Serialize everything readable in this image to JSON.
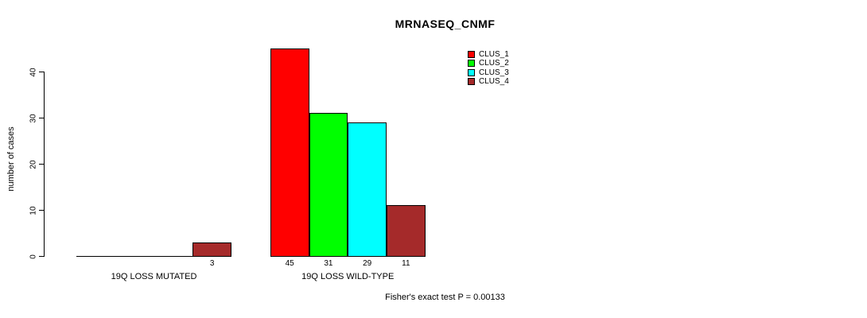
{
  "title": "MRNASEQ_CNMF",
  "ylabel": "number of cases",
  "footer": "Fisher's exact test P = 0.00133",
  "chart_data": {
    "type": "bar",
    "title": "MRNASEQ_CNMF",
    "ylabel": "number of cases",
    "xlabel": "",
    "annotation": "Fisher's exact test P = 0.00133",
    "groups": [
      {
        "label": "19Q LOSS MUTATED",
        "values": [
          0,
          0,
          0,
          3
        ]
      },
      {
        "label": "19Q LOSS WILD-TYPE",
        "values": [
          45,
          31,
          29,
          11
        ]
      }
    ],
    "series": [
      {
        "name": "CLUS_1",
        "color": "#FF0000",
        "values": [
          0,
          45
        ]
      },
      {
        "name": "CLUS_2",
        "color": "#00FF00",
        "values": [
          0,
          31
        ]
      },
      {
        "name": "CLUS_3",
        "color": "#00FFFF",
        "values": [
          0,
          29
        ]
      },
      {
        "name": "CLUS_4",
        "color": "#A52A2A",
        "values": [
          3,
          11
        ]
      }
    ],
    "yticks": [
      0,
      10,
      20,
      30,
      40
    ],
    "ylim": [
      0,
      46.5
    ],
    "grid": false,
    "legend_position": "top-right",
    "bar_border_color": "#000000",
    "show_value_labels": true
  }
}
